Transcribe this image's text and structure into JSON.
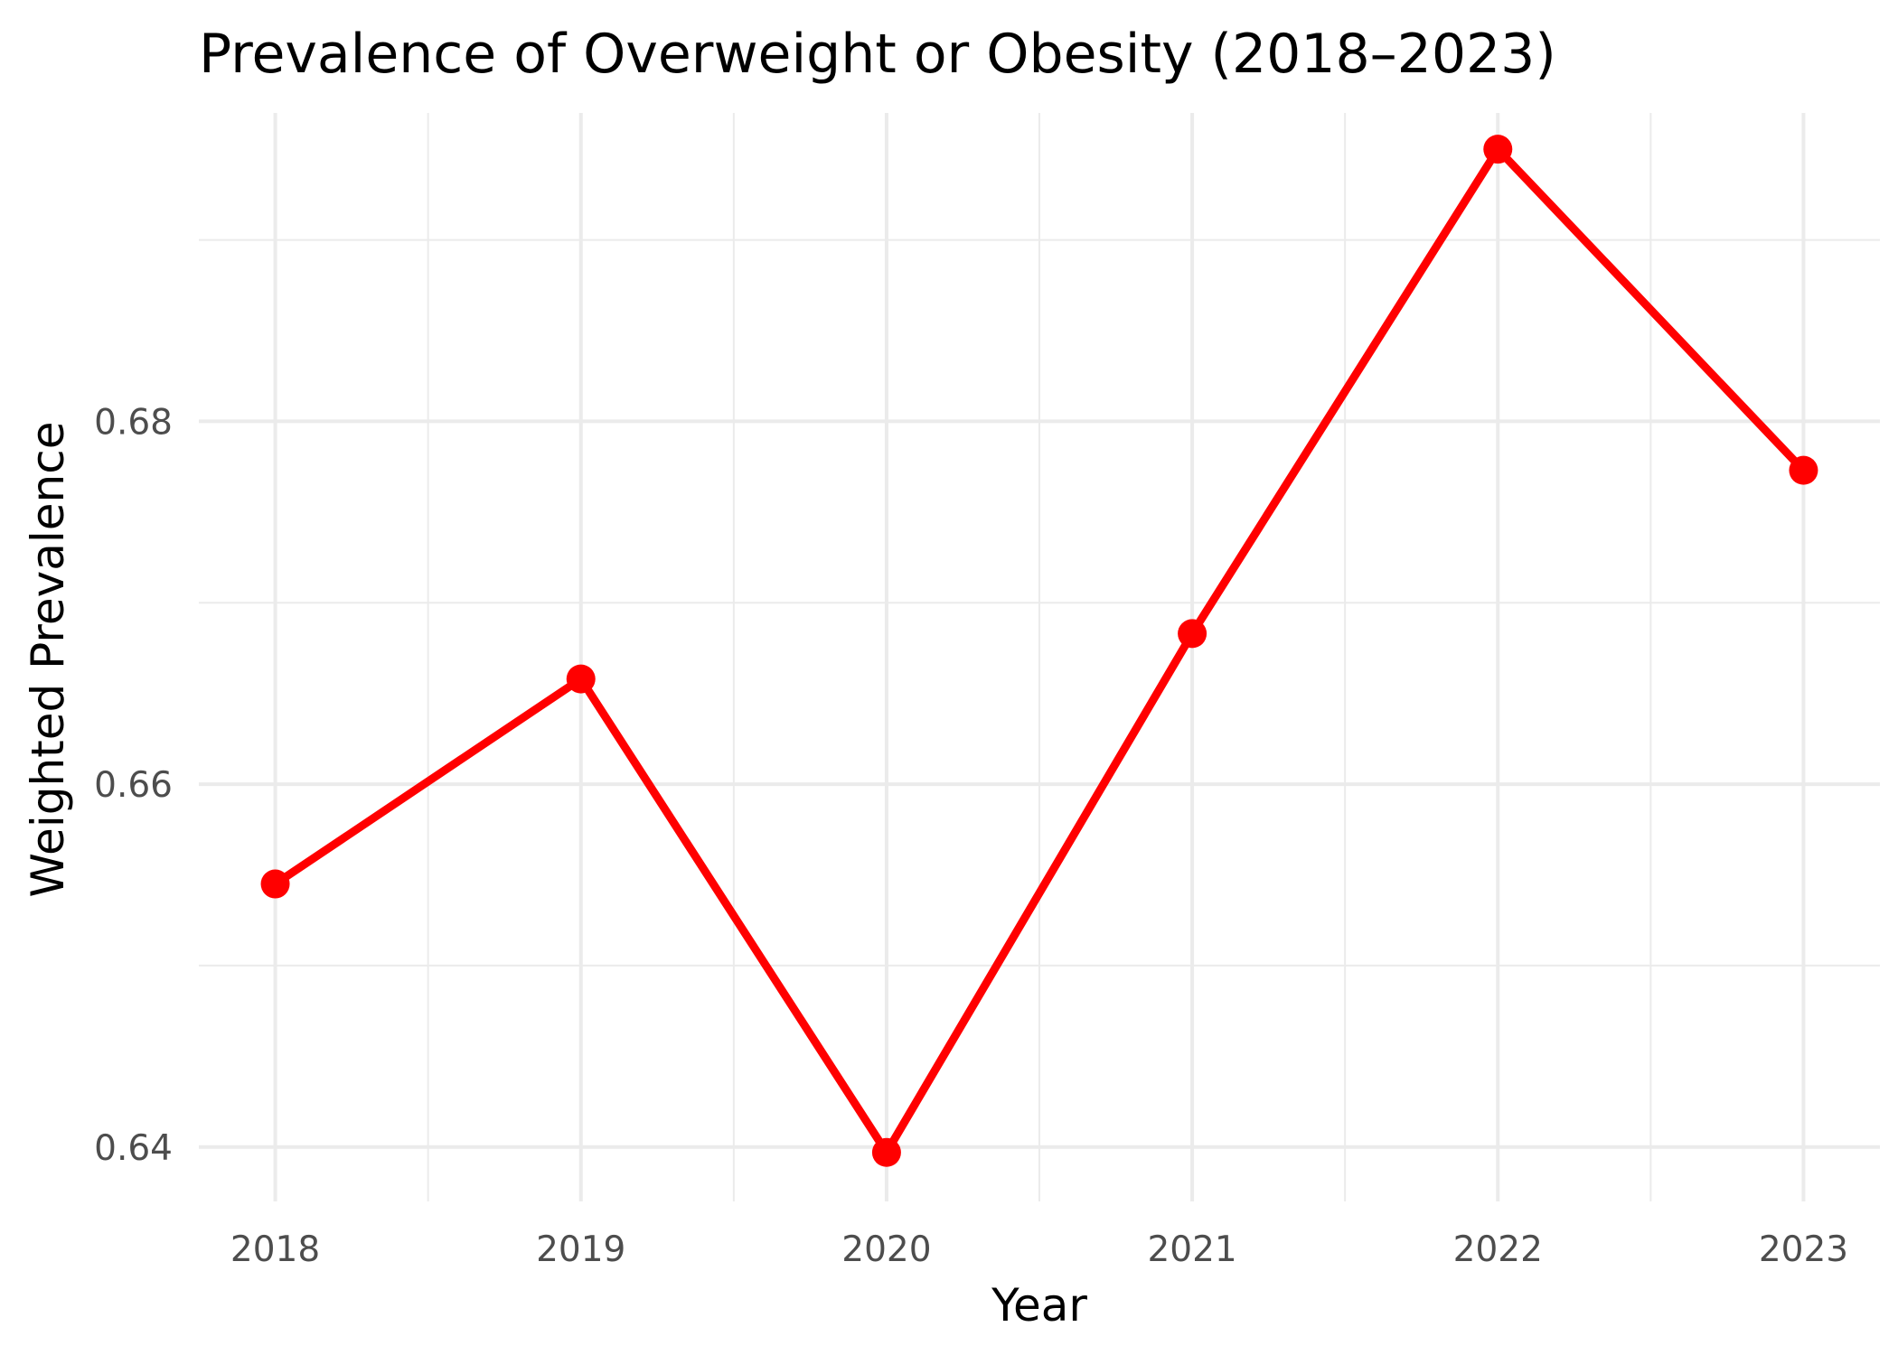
{
  "chart_data": {
    "type": "line",
    "title": "Prevalence of Overweight or Obesity (2018–2023)",
    "xlabel": "Year",
    "ylabel": "Weighted Prevalence",
    "x": [
      2018,
      2019,
      2020,
      2021,
      2022,
      2023
    ],
    "x_tick_labels": [
      "2018",
      "2019",
      "2020",
      "2021",
      "2022",
      "2023"
    ],
    "y_ticks": [
      0.64,
      0.66,
      0.68
    ],
    "y_tick_labels": [
      "0.64",
      "0.66",
      "0.68"
    ],
    "xlim": [
      2017.75,
      2023.25
    ],
    "ylim": [
      0.637,
      0.697
    ],
    "grid": true,
    "legend": "none",
    "series": [
      {
        "values": [
          0.6545,
          0.6658,
          0.6397,
          0.6683,
          0.695,
          0.6773
        ],
        "color": "#ff0000"
      }
    ],
    "colors": {
      "line": "#ff0000",
      "grid": "#ebebeb",
      "tick_text": "#4d4d4d",
      "title_text": "#000000"
    }
  }
}
